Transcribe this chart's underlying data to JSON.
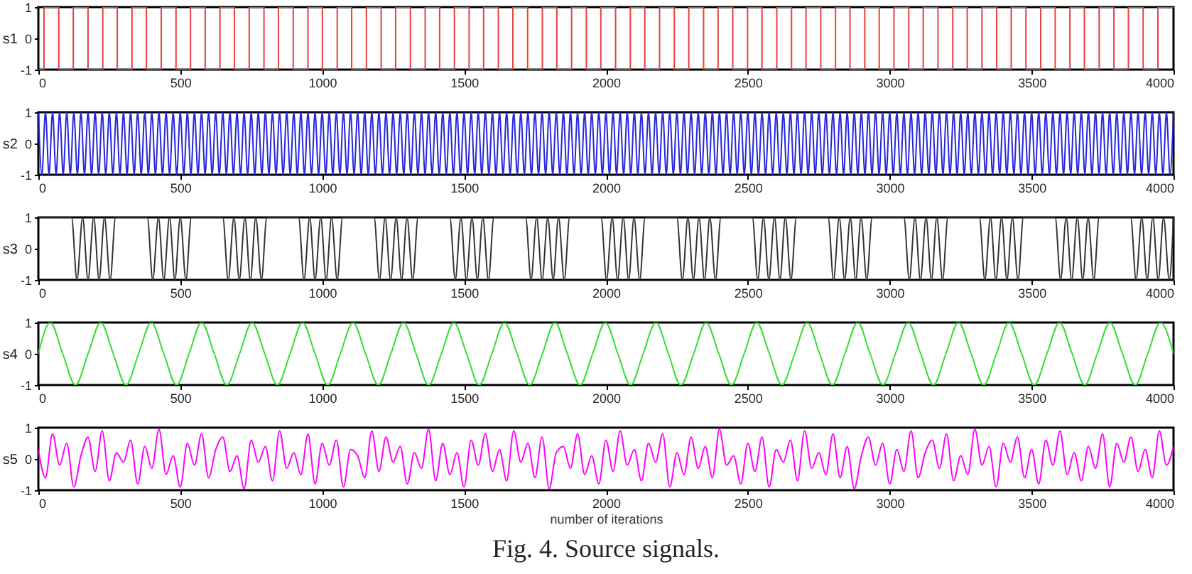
{
  "chart_data": [
    {
      "type": "step",
      "ylabel": "s1",
      "xlim": [
        0,
        4000
      ],
      "xticks": [
        0,
        500,
        1000,
        1500,
        2000,
        2500,
        3000,
        3500,
        4000
      ],
      "ylim": [
        -1,
        1
      ],
      "yticks": [
        -1,
        0,
        1
      ],
      "x": [
        0,
        20,
        72,
        123,
        175,
        227,
        278,
        330,
        381,
        433,
        485,
        536,
        588,
        640,
        691,
        743,
        795,
        846,
        898,
        950,
        1001,
        1053,
        1104,
        1156,
        1208,
        1259,
        1311,
        1363,
        1414,
        1466,
        1518,
        1569,
        1621,
        1672,
        1724,
        1776,
        1827,
        1879,
        1931,
        1982,
        2034,
        2086,
        2137,
        2189,
        2241,
        2292,
        2344,
        2395,
        2447,
        2499,
        2550,
        2602,
        2654,
        2705,
        2757,
        2809,
        2860,
        2912,
        2963,
        3015,
        3067,
        3118,
        3170,
        3222,
        3273,
        3325,
        3377,
        3428,
        3480,
        3532,
        3583,
        3635,
        3686,
        3738,
        3790,
        3841,
        3893,
        3945,
        4000
      ],
      "series": [
        {
          "color": "#e8403f",
          "values": [
            -1,
            1,
            -1,
            1,
            -1,
            1,
            -1,
            1,
            -1,
            1,
            -1,
            1,
            -1,
            1,
            -1,
            1,
            -1,
            1,
            -1,
            1,
            -1,
            1,
            -1,
            1,
            -1,
            1,
            -1,
            1,
            -1,
            1,
            -1,
            1,
            -1,
            1,
            -1,
            1,
            -1,
            1,
            -1,
            1,
            -1,
            1,
            -1,
            1,
            -1,
            1,
            -1,
            1,
            -1,
            1,
            -1,
            1,
            -1,
            1,
            -1,
            1,
            -1,
            1,
            -1,
            1,
            -1,
            1,
            -1,
            1,
            -1,
            1,
            -1,
            1,
            -1,
            1,
            -1,
            1,
            -1,
            1,
            -1,
            1,
            -1,
            1,
            1
          ]
        }
      ]
    },
    {
      "type": "line",
      "ylabel": "s2",
      "xlim": [
        0,
        4000
      ],
      "xticks": [
        0,
        500,
        1000,
        1500,
        2000,
        2500,
        3000,
        3500,
        4000
      ],
      "ylim": [
        -1,
        1
      ],
      "yticks": [
        -1,
        0,
        1
      ],
      "x": [
        0,
        12.5,
        25,
        37.5,
        50,
        62.5,
        75,
        87.5,
        100,
        112.5,
        125,
        137.5,
        150,
        162.5,
        175,
        187.5,
        200,
        212.5,
        225,
        237.5,
        250,
        262.5,
        275,
        287.5,
        300,
        312.5,
        325,
        337.5,
        350,
        362.5,
        375,
        387.5,
        400,
        412.5,
        425,
        437.5,
        450,
        462.5,
        475,
        487.5,
        500,
        512.5,
        525,
        537.5,
        550,
        562.5,
        575,
        587.5,
        600,
        612.5,
        625,
        637.5,
        650,
        662.5,
        675,
        687.5,
        700,
        712.5,
        725,
        737.5,
        750,
        762.5,
        775,
        787.5,
        800,
        812.5,
        825,
        837.5,
        850,
        862.5,
        875,
        887.5,
        900,
        912.5,
        925,
        937.5,
        950,
        962.5,
        975,
        987.5,
        1000,
        1012.5,
        1025,
        1037.5,
        1050,
        1062.5,
        1075,
        1087.5,
        1100,
        1112.5,
        1125,
        1137.5,
        1150,
        1162.5,
        1175,
        1187.5,
        1200,
        1212.5,
        1225,
        1237.5,
        1250,
        1262.5,
        1275,
        1287.5,
        1300,
        1312.5,
        1325,
        1337.5,
        1350,
        1362.5,
        1375,
        1387.5,
        1400,
        1412.5,
        1425,
        1437.5,
        1450,
        1462.5,
        1475,
        1487.5,
        1500,
        1512.5,
        1525,
        1537.5,
        1550,
        1562.5,
        1575,
        1587.5,
        1600,
        1612.5,
        1625,
        1637.5,
        1650,
        1662.5,
        1675,
        1687.5,
        1700,
        1712.5,
        1725,
        1737.5,
        1750,
        1762.5,
        1775,
        1787.5,
        1800,
        1812.5,
        1825,
        1837.5,
        1850,
        1862.5,
        1875,
        1887.5,
        1900,
        1912.5,
        1925,
        1937.5,
        1950,
        1962.5,
        1975,
        1987.5,
        2000,
        2012.5,
        2025,
        2037.5,
        2050,
        2062.5,
        2075,
        2087.5,
        2100,
        2112.5,
        2125,
        2137.5,
        2150,
        2162.5,
        2175,
        2187.5,
        2200,
        2212.5,
        2225,
        2237.5,
        2250,
        2262.5,
        2275,
        2287.5,
        2300,
        2312.5,
        2325,
        2337.5,
        2350,
        2362.5,
        2375,
        2387.5,
        2400,
        2412.5,
        2425,
        2437.5,
        2450,
        2462.5,
        2475,
        2487.5,
        2500,
        2512.5,
        2525,
        2537.5,
        2550,
        2562.5,
        2575,
        2587.5,
        2600,
        2612.5,
        2625,
        2637.5,
        2650,
        2662.5,
        2675,
        2687.5,
        2700,
        2712.5,
        2725,
        2737.5,
        2750,
        2762.5,
        2775,
        2787.5,
        2800,
        2812.5,
        2825,
        2837.5,
        2850,
        2862.5,
        2875,
        2887.5,
        2900,
        2912.5,
        2925,
        2937.5,
        2950,
        2962.5,
        2975,
        2987.5,
        3000,
        3012.5,
        3025,
        3037.5,
        3050,
        3062.5,
        3075,
        3087.5,
        3100,
        3112.5,
        3125,
        3137.5,
        3150,
        3162.5,
        3175,
        3187.5,
        3200,
        3212.5,
        3225,
        3237.5,
        3250,
        3262.5,
        3275,
        3287.5,
        3300,
        3312.5,
        3325,
        3337.5,
        3350,
        3362.5,
        3375,
        3387.5,
        3400,
        3412.5,
        3425,
        3437.5,
        3450,
        3462.5,
        3475,
        3487.5,
        3500,
        3512.5,
        3525,
        3537.5,
        3550,
        3562.5,
        3575,
        3587.5,
        3600,
        3612.5,
        3625,
        3637.5,
        3650,
        3662.5,
        3675,
        3687.5,
        3700,
        3712.5,
        3725,
        3737.5,
        3750,
        3762.5,
        3775,
        3787.5,
        3800,
        3812.5,
        3825,
        3837.5,
        3850,
        3862.5,
        3875,
        3887.5,
        3900,
        3912.5,
        3925,
        3937.5,
        3950,
        3962.5,
        3975,
        3987.5,
        4000
      ],
      "series": [
        {
          "color": "#2626e0",
          "values": [
            1,
            -1,
            1,
            -1,
            1,
            -1,
            1,
            -1,
            1,
            -1,
            1,
            -1,
            1,
            -1,
            1,
            -1,
            1,
            -1,
            1,
            -1,
            1,
            -1,
            1,
            -1,
            1,
            -1,
            1,
            -1,
            1,
            -1,
            1,
            -1,
            1,
            -1,
            1,
            -1,
            1,
            -1,
            1,
            -1,
            1,
            -1,
            1,
            -1,
            1,
            -1,
            1,
            -1,
            1,
            -1,
            1,
            -1,
            1,
            -1,
            1,
            -1,
            1,
            -1,
            1,
            -1,
            1,
            -1,
            1,
            -1,
            1,
            -1,
            1,
            -1,
            1,
            -1,
            1,
            -1,
            1,
            -1,
            1,
            -1,
            1,
            -1,
            1,
            -1,
            1,
            -1,
            1,
            -1,
            1,
            -1,
            1,
            -1,
            1,
            -1,
            1,
            -1,
            1,
            -1,
            1,
            -1,
            1,
            -1,
            1,
            -1,
            1,
            -1,
            1,
            -1,
            1,
            -1,
            1,
            -1,
            1,
            -1,
            1,
            -1,
            1,
            -1,
            1,
            -1,
            1,
            -1,
            1,
            -1,
            1,
            -1,
            1,
            -1,
            1,
            -1,
            1,
            -1,
            1,
            -1,
            1,
            -1,
            1,
            -1,
            1,
            -1,
            1,
            -1,
            1,
            -1,
            1,
            -1,
            1,
            -1,
            1,
            -1,
            1,
            -1,
            1,
            -1,
            1,
            -1,
            1,
            -1,
            1,
            -1,
            1,
            -1,
            1,
            -1,
            1,
            -1,
            1,
            -1,
            1,
            -1,
            1,
            -1,
            1,
            -1,
            1,
            -1,
            1,
            -1,
            1,
            -1,
            1,
            -1,
            1,
            -1,
            1,
            -1,
            1,
            -1,
            1,
            -1,
            1,
            -1,
            1,
            -1,
            1,
            -1,
            1,
            -1,
            1,
            -1,
            1,
            -1,
            1,
            -1,
            1,
            -1,
            1,
            -1,
            1,
            -1,
            1,
            -1,
            1,
            -1,
            1,
            -1,
            1,
            -1,
            1,
            -1,
            1,
            -1,
            1,
            -1,
            1,
            -1,
            1,
            -1,
            1,
            -1,
            1,
            -1,
            1,
            -1,
            1,
            -1,
            1,
            -1,
            1,
            -1,
            1,
            -1,
            1,
            -1,
            1,
            -1,
            1,
            -1,
            1,
            -1,
            1,
            -1,
            1,
            -1,
            1,
            -1,
            1,
            -1,
            1,
            -1,
            1,
            -1,
            1,
            -1,
            1,
            -1,
            1,
            -1,
            1,
            -1,
            1,
            -1,
            1,
            -1,
            1,
            -1,
            1,
            -1,
            1,
            -1,
            1,
            -1,
            1,
            -1,
            1,
            -1,
            1,
            -1,
            1,
            -1,
            1,
            -1,
            1,
            -1,
            1,
            -1,
            1,
            -1,
            1,
            -1,
            1,
            -1,
            1,
            -1,
            1,
            -1,
            1,
            -1,
            1,
            -1,
            1,
            -1,
            1,
            -1,
            1,
            -1,
            1,
            -1,
            1,
            -1,
            1,
            -1,
            1,
            -1,
            1
          ]
        }
      ]
    },
    {
      "type": "line",
      "ylabel": "s3",
      "xlim": [
        0,
        4000
      ],
      "xticks": [
        0,
        500,
        1000,
        1500,
        2000,
        2500,
        3000,
        3500,
        4000
      ],
      "ylim": [
        -1,
        1
      ],
      "yticks": [
        -1,
        0,
        1
      ],
      "x": [
        0,
        117,
        136,
        156,
        175,
        195,
        214,
        233,
        253,
        272,
        384,
        403,
        423,
        442,
        462,
        481,
        500,
        520,
        539,
        650,
        669,
        689,
        708,
        728,
        747,
        766,
        786,
        805,
        917,
        936,
        956,
        975,
        995,
        1014,
        1033,
        1053,
        1072,
        1183,
        1202,
        1222,
        1241,
        1261,
        1280,
        1299,
        1319,
        1338,
        1450,
        1469,
        1489,
        1508,
        1528,
        1547,
        1566,
        1586,
        1605,
        1717,
        1736,
        1756,
        1775,
        1795,
        1814,
        1833,
        1853,
        1872,
        1983,
        2002,
        2022,
        2041,
        2061,
        2080,
        2099,
        2119,
        2138,
        2250,
        2269,
        2289,
        2308,
        2328,
        2347,
        2366,
        2386,
        2405,
        2516,
        2535,
        2555,
        2574,
        2594,
        2613,
        2632,
        2652,
        2671,
        2783,
        2802,
        2822,
        2841,
        2861,
        2880,
        2899,
        2919,
        2938,
        3050,
        3069,
        3089,
        3108,
        3128,
        3147,
        3166,
        3186,
        3205,
        3316,
        3335,
        3355,
        3374,
        3394,
        3413,
        3432,
        3452,
        3471,
        3583,
        3602,
        3622,
        3641,
        3661,
        3680,
        3699,
        3719,
        3738,
        3849,
        3868,
        3888,
        3907,
        3927,
        3946,
        3965,
        3985,
        4000
      ],
      "series": [
        {
          "color": "#333333",
          "values": [
            1,
            1,
            -1,
            1,
            -1,
            1,
            -1,
            1,
            -1,
            1,
            1,
            -1,
            1,
            -1,
            1,
            -1,
            1,
            -1,
            1,
            1,
            -1,
            1,
            -1,
            1,
            -1,
            1,
            -1,
            1,
            1,
            -1,
            1,
            -1,
            1,
            -1,
            1,
            -1,
            1,
            1,
            -1,
            1,
            -1,
            1,
            -1,
            1,
            -1,
            1,
            1,
            -1,
            1,
            -1,
            1,
            -1,
            1,
            -1,
            1,
            1,
            -1,
            1,
            -1,
            1,
            -1,
            1,
            -1,
            1,
            1,
            -1,
            1,
            -1,
            1,
            -1,
            1,
            -1,
            1,
            1,
            -1,
            1,
            -1,
            1,
            -1,
            1,
            -1,
            1,
            1,
            -1,
            1,
            -1,
            1,
            -1,
            1,
            -1,
            1,
            1,
            -1,
            1,
            -1,
            1,
            -1,
            1,
            -1,
            1,
            1,
            -1,
            1,
            -1,
            1,
            -1,
            1,
            -1,
            1,
            1,
            -1,
            1,
            -1,
            1,
            -1,
            1,
            -1,
            1,
            1,
            -1,
            1,
            -1,
            1,
            -1,
            1,
            -1,
            1,
            1,
            -1,
            1,
            -1,
            1,
            -1,
            1,
            -1,
            1
          ]
        }
      ]
    },
    {
      "type": "line",
      "ylabel": "s4",
      "xlim": [
        0,
        4000
      ],
      "xticks": [
        0,
        500,
        1000,
        1500,
        2000,
        2500,
        3000,
        3500,
        4000
      ],
      "ylim": [
        -1,
        1
      ],
      "yticks": [
        -1,
        0,
        1
      ],
      "x": [
        0,
        42,
        86,
        131,
        175,
        220,
        264,
        309,
        353,
        398,
        442,
        487,
        531,
        575,
        620,
        664,
        709,
        753,
        798,
        842,
        887,
        931,
        975,
        1020,
        1064,
        1109,
        1153,
        1198,
        1242,
        1287,
        1331,
        1375,
        1420,
        1464,
        1509,
        1553,
        1598,
        1642,
        1687,
        1731,
        1776,
        1820,
        1864,
        1909,
        1953,
        1998,
        2042,
        2087,
        2131,
        2176,
        2220,
        2264,
        2309,
        2353,
        2398,
        2442,
        2487,
        2531,
        2576,
        2620,
        2665,
        2709,
        2753,
        2798,
        2842,
        2887,
        2931,
        2976,
        3020,
        3065,
        3109,
        3154,
        3198,
        3242,
        3287,
        3331,
        3376,
        3420,
        3465,
        3509,
        3554,
        3598,
        3643,
        3687,
        3731,
        3776,
        3820,
        3865,
        3909,
        3954,
        4000
      ],
      "series": [
        {
          "color": "#33dd33",
          "values": [
            0,
            1,
            0,
            -1,
            0,
            1,
            0,
            -1,
            0,
            1,
            0,
            -1,
            0,
            1,
            0,
            -1,
            0,
            1,
            0,
            -1,
            0,
            1,
            0,
            -1,
            0,
            1,
            0,
            -1,
            0,
            1,
            0,
            -1,
            0,
            1,
            0,
            -1,
            0,
            1,
            0,
            -1,
            0,
            1,
            0,
            -1,
            0,
            1,
            0,
            -1,
            0,
            1,
            0,
            -1,
            0,
            1,
            0,
            -1,
            0,
            1,
            0,
            -1,
            0,
            1,
            0,
            -1,
            0,
            1,
            0,
            -1,
            0,
            1,
            0,
            -1,
            0,
            1,
            0,
            -1,
            0,
            1,
            0,
            -1,
            0,
            1,
            0,
            -1,
            0,
            1,
            0,
            -1,
            0,
            1,
            0
          ]
        }
      ]
    },
    {
      "type": "line",
      "ylabel": "s5",
      "xlabel": "number of iterations",
      "annotations": [
        "Fig. 4. Source signals."
      ],
      "xlim": [
        0,
        4000
      ],
      "xticks": [
        0,
        500,
        1000,
        1500,
        2000,
        2500,
        3000,
        3500,
        4000
      ],
      "ylim": [
        -1,
        1
      ],
      "yticks": [
        -1,
        0,
        1
      ],
      "x": [
        0,
        25,
        50,
        75,
        100,
        125,
        150,
        175,
        200,
        225,
        250,
        275,
        300,
        325,
        350,
        375,
        400,
        425,
        450,
        475,
        500,
        525,
        550,
        575,
        600,
        625,
        650,
        675,
        700,
        725,
        750,
        775,
        800,
        825,
        850,
        875,
        900,
        925,
        950,
        975,
        1000,
        1025,
        1050,
        1075,
        1100,
        1125,
        1150,
        1175,
        1200,
        1225,
        1250,
        1275,
        1300,
        1325,
        1350,
        1375,
        1400,
        1425,
        1450,
        1475,
        1500,
        1525,
        1550,
        1575,
        1600,
        1625,
        1650,
        1675,
        1700,
        1725,
        1750,
        1775,
        1800,
        1825,
        1850,
        1875,
        1900,
        1925,
        1950,
        1975,
        2000,
        2025,
        2050,
        2075,
        2100,
        2125,
        2150,
        2175,
        2200,
        2225,
        2250,
        2275,
        2300,
        2325,
        2350,
        2375,
        2400,
        2425,
        2450,
        2475,
        2500,
        2525,
        2550,
        2575,
        2600,
        2625,
        2650,
        2675,
        2700,
        2725,
        2750,
        2775,
        2800,
        2825,
        2850,
        2875,
        2900,
        2925,
        2950,
        2975,
        3000,
        3025,
        3050,
        3075,
        3100,
        3125,
        3150,
        3175,
        3200,
        3225,
        3250,
        3275,
        3300,
        3325,
        3350,
        3375,
        3400,
        3425,
        3450,
        3475,
        3500,
        3525,
        3550,
        3575,
        3600,
        3625,
        3650,
        3675,
        3700,
        3725,
        3750,
        3775,
        3800,
        3825,
        3850,
        3875,
        3900,
        3925,
        3950,
        3975,
        4000
      ],
      "series": [
        {
          "color": "#ff00ff",
          "values": [
            0.3,
            -0.6,
            0.8,
            -0.2,
            0.5,
            -0.9,
            0.1,
            0.7,
            -0.4,
            0.9,
            -0.7,
            0.2,
            -0.1,
            0.6,
            -0.8,
            0.4,
            -0.3,
            0.95,
            -0.5,
            0.1,
            -0.9,
            0.5,
            -0.2,
            0.8,
            -0.6,
            0.3,
            0.7,
            -0.4,
            0.1,
            -0.95,
            0.6,
            -0.1,
            0.4,
            -0.7,
            0.9,
            -0.3,
            0.2,
            -0.5,
            0.8,
            -0.8,
            0.5,
            -0.2,
            0.6,
            -0.9,
            0.3,
            0.1,
            -0.6,
            0.9,
            -0.4,
            0.7,
            -0.1,
            0.4,
            -0.8,
            0.2,
            -0.3,
            0.95,
            -0.7,
            0.5,
            -0.5,
            0.2,
            -0.9,
            0.6,
            -0.2,
            0.8,
            -0.4,
            0.3,
            -0.7,
            0.9,
            -0.1,
            0.5,
            -0.6,
            0.7,
            -0.95,
            0.2,
            0.4,
            -0.3,
            0.8,
            -0.5,
            0.1,
            -0.8,
            0.6,
            -0.4,
            0.9,
            -0.2,
            0.3,
            -0.7,
            0.5,
            -0.1,
            0.8,
            -0.9,
            0.2,
            -0.5,
            0.7,
            -0.3,
            0.4,
            -0.6,
            0.95,
            -0.2,
            0.1,
            -0.8,
            0.5,
            -0.4,
            0.7,
            -0.9,
            0.3,
            -0.1,
            0.6,
            -0.7,
            0.9,
            -0.3,
            0.2,
            -0.5,
            0.8,
            -0.6,
            0.4,
            -0.95,
            0.1,
            0.7,
            -0.2,
            0.5,
            -0.8,
            0.3,
            -0.4,
            0.9,
            -0.6,
            0.2,
            0.6,
            -0.3,
            0.8,
            -0.7,
            0.1,
            -0.5,
            0.95,
            -0.2,
            0.4,
            -0.9,
            0.5,
            -0.1,
            0.7,
            -0.6,
            0.3,
            -0.8,
            0.6,
            -0.2,
            0.9,
            -0.5,
            0.2,
            -0.7,
            0.4,
            -0.3,
            0.8,
            -0.9,
            0.5,
            -0.1,
            0.7,
            -0.4,
            0.3,
            -0.6,
            0.9,
            -0.2,
            0.4
          ]
        }
      ]
    }
  ]
}
